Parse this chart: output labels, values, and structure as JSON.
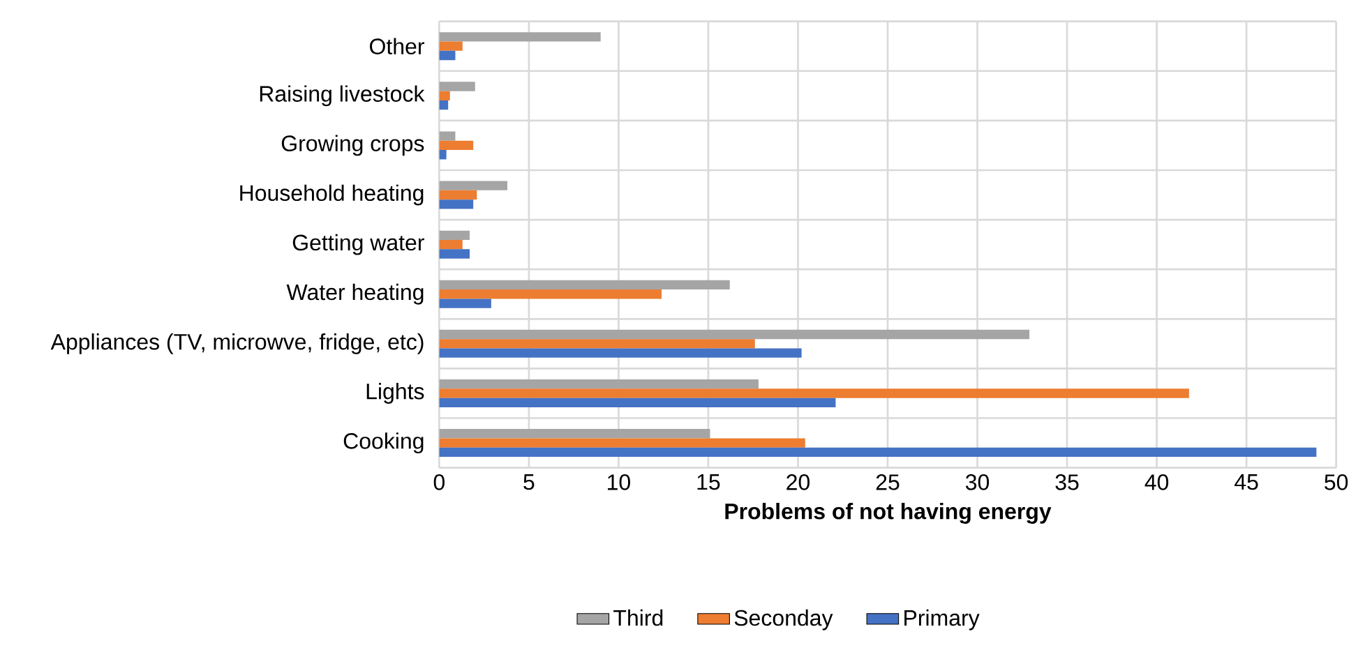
{
  "chart_data": {
    "type": "bar",
    "orientation": "horizontal",
    "xlabel": "Problems of not having energy",
    "categories": [
      "Other",
      "Raising livestock",
      "Growing crops",
      "Household heating",
      "Getting water",
      "Water heating",
      "Appliances (TV, microwve, fridge, etc)",
      "Lights",
      "Cooking"
    ],
    "series": [
      {
        "name": "Third",
        "color": "#a5a5a5",
        "values": [
          9.0,
          2.0,
          0.9,
          3.8,
          1.7,
          16.2,
          32.9,
          17.8,
          15.1
        ]
      },
      {
        "name": "Seconday",
        "color": "#ed7d31",
        "values": [
          1.3,
          0.6,
          1.9,
          2.1,
          1.3,
          12.4,
          17.6,
          41.8,
          20.4
        ]
      },
      {
        "name": "Primary",
        "color": "#4472c4",
        "values": [
          0.9,
          0.5,
          0.4,
          1.9,
          1.7,
          2.9,
          20.2,
          22.1,
          48.9
        ]
      }
    ],
    "xlim": [
      0,
      50
    ],
    "xticks": [
      0,
      5,
      10,
      15,
      20,
      25,
      30,
      35,
      40,
      45,
      50
    ],
    "grid": true,
    "legend": "bottom"
  }
}
